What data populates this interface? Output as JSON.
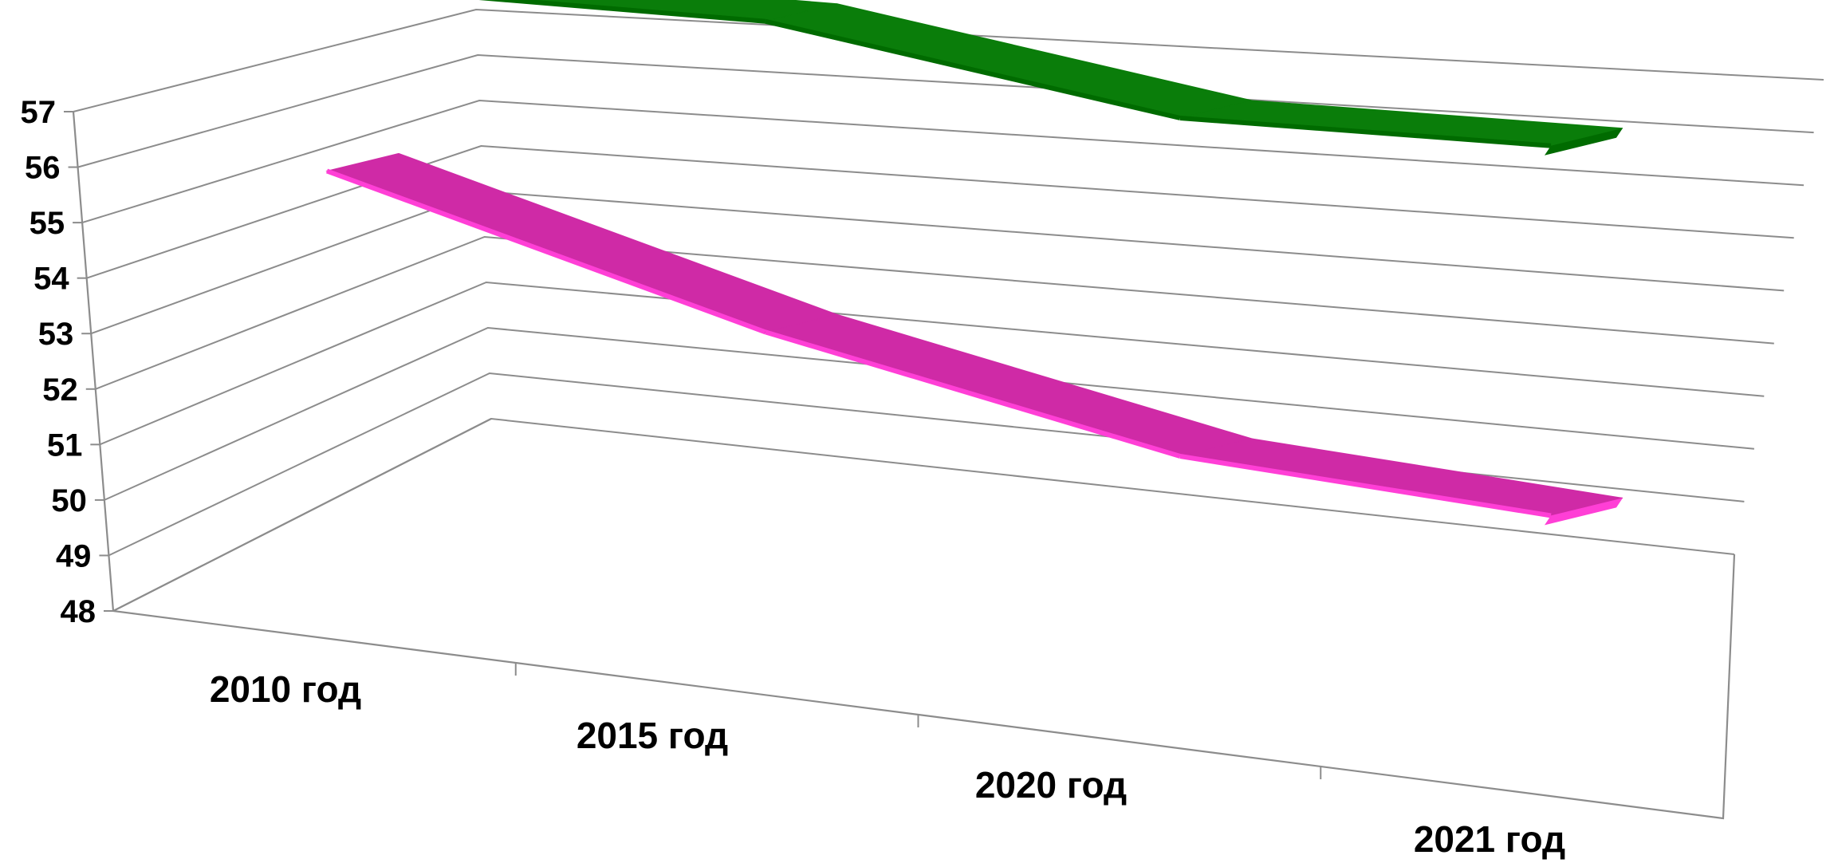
{
  "colors": {
    "background": "#ffffff",
    "grid": "#8c8c8c",
    "axis": "#8c8c8c",
    "series_green_top": "#0a7d0a",
    "series_green_front": "#006b00",
    "series_magenta_top": "#cf2aa6",
    "series_magenta_front": "#ff3fd6"
  },
  "chart_data": {
    "type": "line",
    "variant": "3d-ribbon",
    "title": "",
    "xlabel": "",
    "ylabel": "",
    "ylim": [
      48,
      57
    ],
    "yticks": [
      "48",
      "49",
      "50",
      "51",
      "52",
      "53",
      "54",
      "55",
      "56",
      "57"
    ],
    "categories": [
      "2010 год",
      "2015 год",
      "2020 год",
      "2021 год"
    ],
    "grid": true,
    "legend": "none",
    "series": [
      {
        "color": "magenta",
        "values": [
          56.2,
          53.2,
          51.0,
          50.2
        ]
      },
      {
        "color": "green",
        "values": [
          57.2,
          56.8,
          55.0,
          54.8
        ]
      }
    ]
  }
}
